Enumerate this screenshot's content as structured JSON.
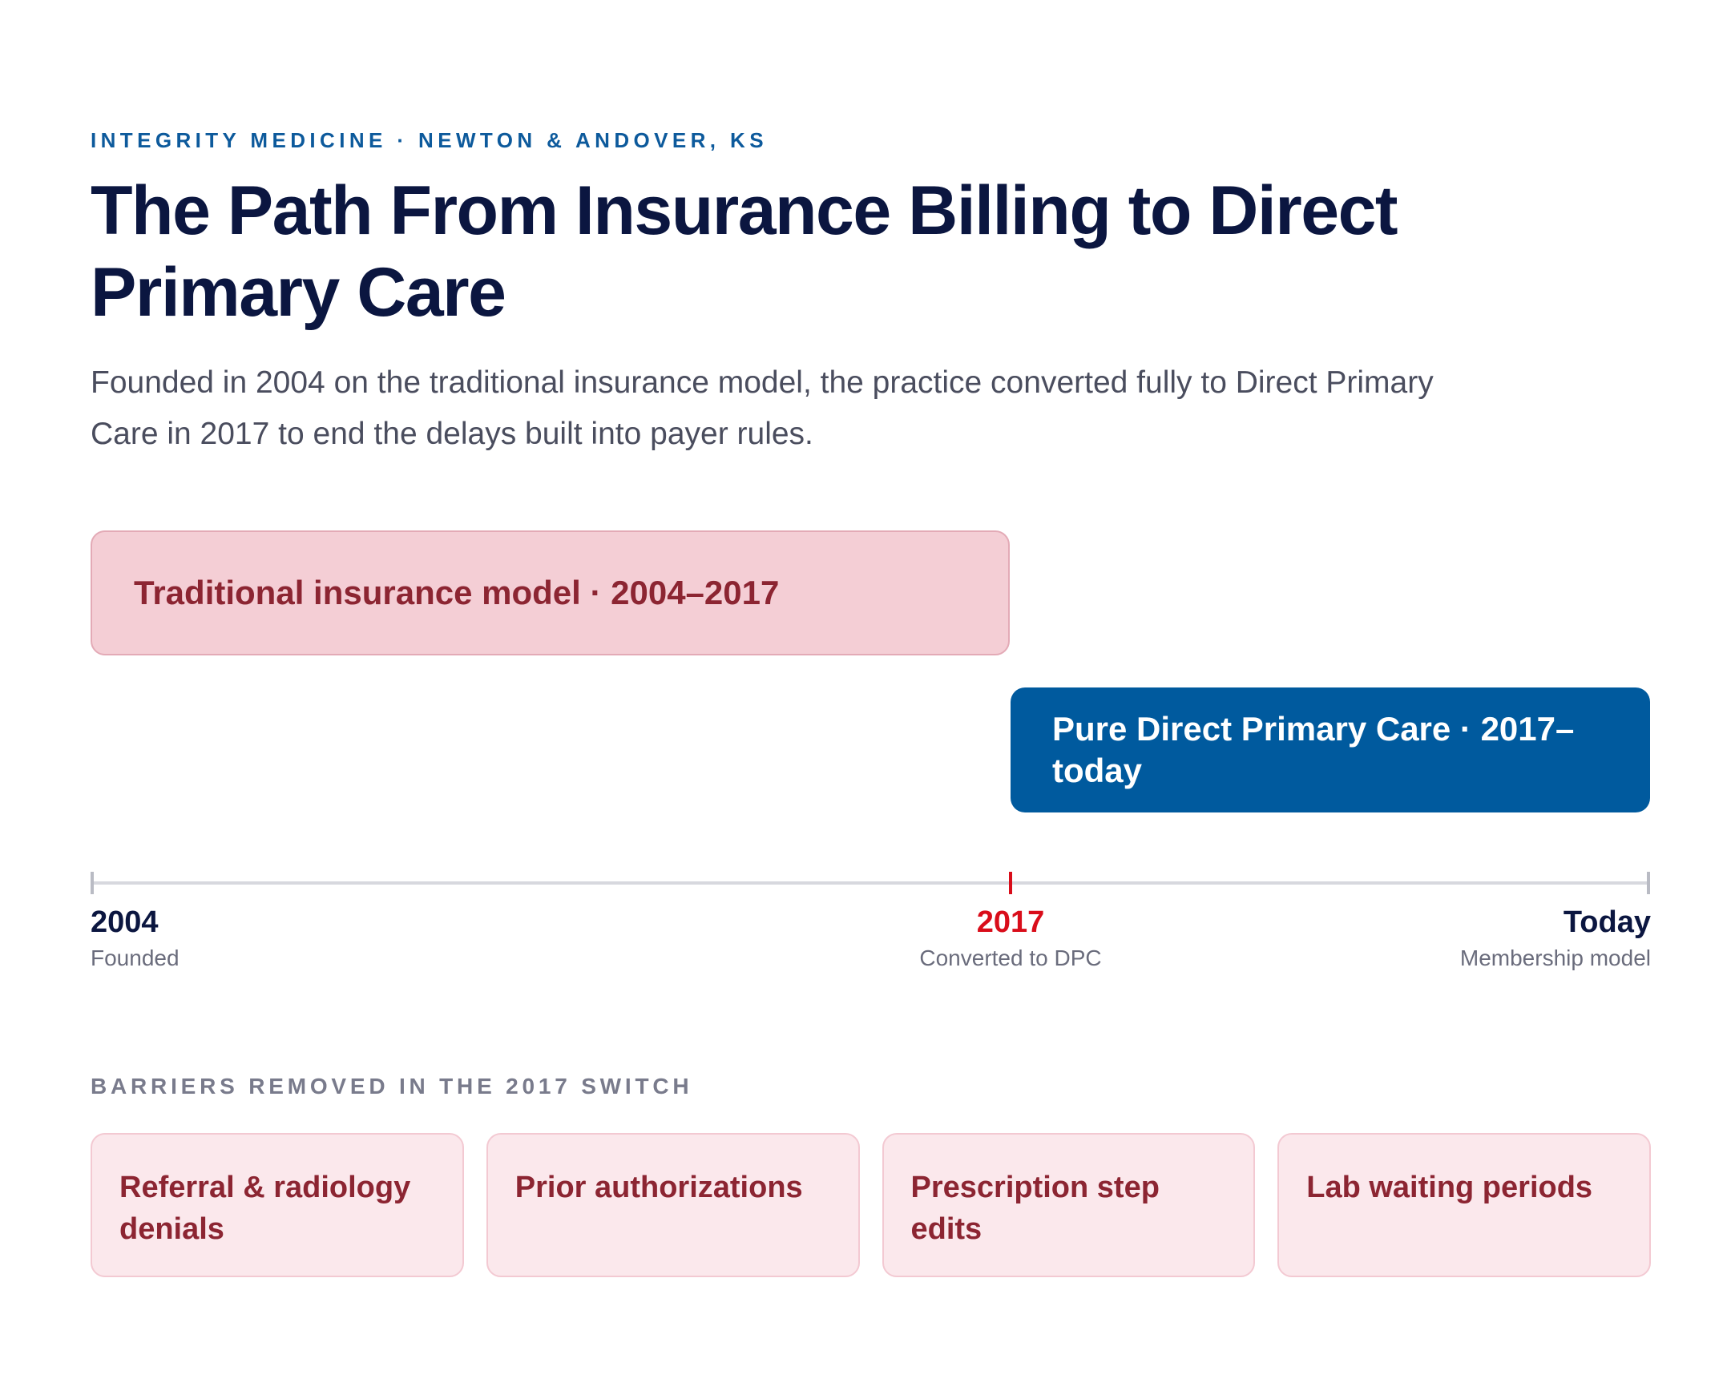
{
  "header": {
    "eyebrow": "INTEGRITY MEDICINE · NEWTON & ANDOVER, KS",
    "title": "The Path From Insurance Billing to Direct Primary Care",
    "subtitle": "Founded in 2004 on the traditional insurance model, the practice converted fully to Direct Primary Care in 2017 to end the delays built into payer rules."
  },
  "timeline": {
    "bands": [
      {
        "label": "Traditional insurance model · 2004–2017",
        "start": 2004,
        "end": 2017,
        "color": "#f4ced5",
        "text_color": "#8c2532"
      },
      {
        "label": "Pure Direct Primary Care · 2017–today",
        "start": 2017,
        "end": "today",
        "color": "#005a9e",
        "text_color": "#ffffff"
      }
    ],
    "ticks": [
      {
        "year": "2004",
        "note": "Founded"
      },
      {
        "year": "2017",
        "note": "Converted to DPC",
        "highlight_color": "#d90d1a"
      },
      {
        "year": "Today",
        "note": "Membership model"
      }
    ]
  },
  "barriers": {
    "heading": "BARRIERS REMOVED IN THE 2017 SWITCH",
    "items": [
      "Referral & radiology denials",
      "Prior authorizations",
      "Prescription step edits",
      "Lab waiting periods"
    ]
  },
  "colors": {
    "navy": "#0b1640",
    "brand_blue": "#005a9e",
    "accent_red": "#d90d1a",
    "muted_red": "#8c2532"
  }
}
